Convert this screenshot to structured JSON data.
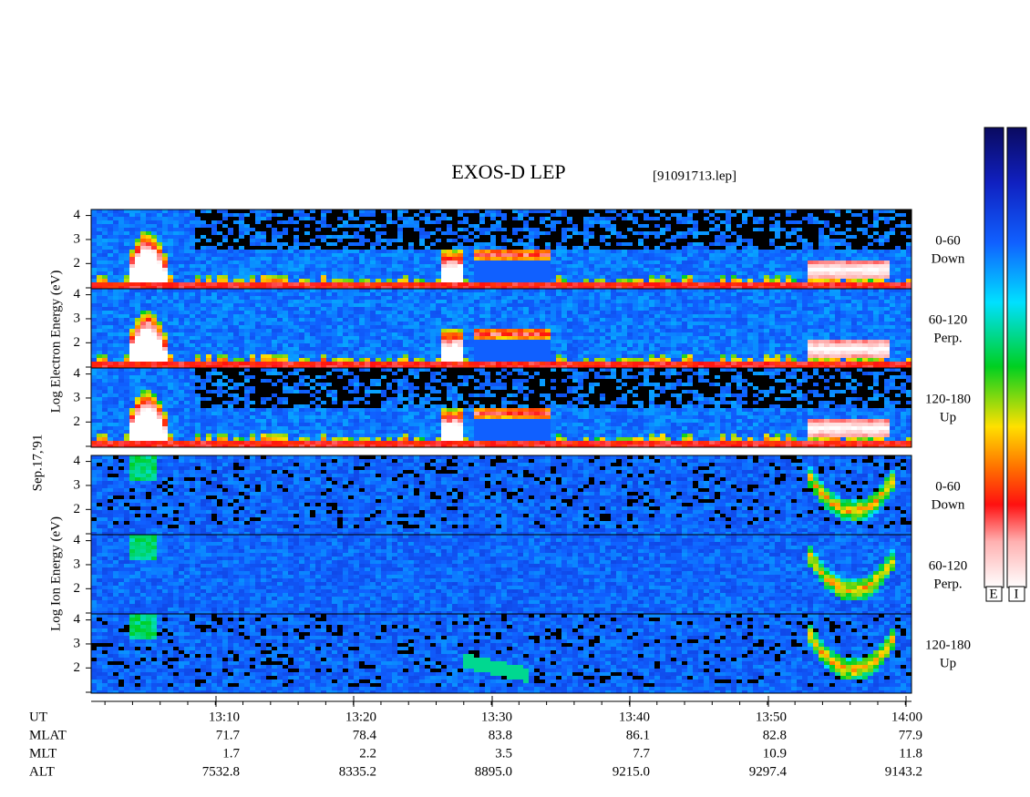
{
  "title": "EXOS-D LEP",
  "file": "[91091713.lep]",
  "date": "Sep.17,'91",
  "electron_axis_label": "Log Electron Energy (eV)",
  "ion_axis_label": "Log Ion Energy (eV)",
  "ylim": [
    0.95,
    4.25
  ],
  "yticks": [
    2,
    3,
    4
  ],
  "panels": [
    {
      "range": "0-60",
      "direction": "Down"
    },
    {
      "range": "60-120",
      "direction": "Perp."
    },
    {
      "range": "120-180",
      "direction": "Up"
    },
    {
      "range": "0-60",
      "direction": "Down"
    },
    {
      "range": "60-120",
      "direction": "Perp."
    },
    {
      "range": "120-180",
      "direction": "Up"
    }
  ],
  "colorbars": [
    "E",
    "I"
  ],
  "orbit": {
    "rows": [
      {
        "label": "UT",
        "values": [
          "13:10",
          "13:20",
          "13:30",
          "13:40",
          "13:50",
          "14:00"
        ]
      },
      {
        "label": "MLAT",
        "values": [
          "71.7",
          "78.4",
          "83.8",
          "86.1",
          "82.8",
          "77.9"
        ]
      },
      {
        "label": "MLT",
        "values": [
          "1.7",
          "2.2",
          "3.5",
          "7.7",
          "10.9",
          "11.8"
        ]
      },
      {
        "label": "ALT",
        "values": [
          "7532.8",
          "8335.2",
          "8895.0",
          "9215.0",
          "9297.4",
          "9143.2"
        ]
      }
    ]
  }
}
